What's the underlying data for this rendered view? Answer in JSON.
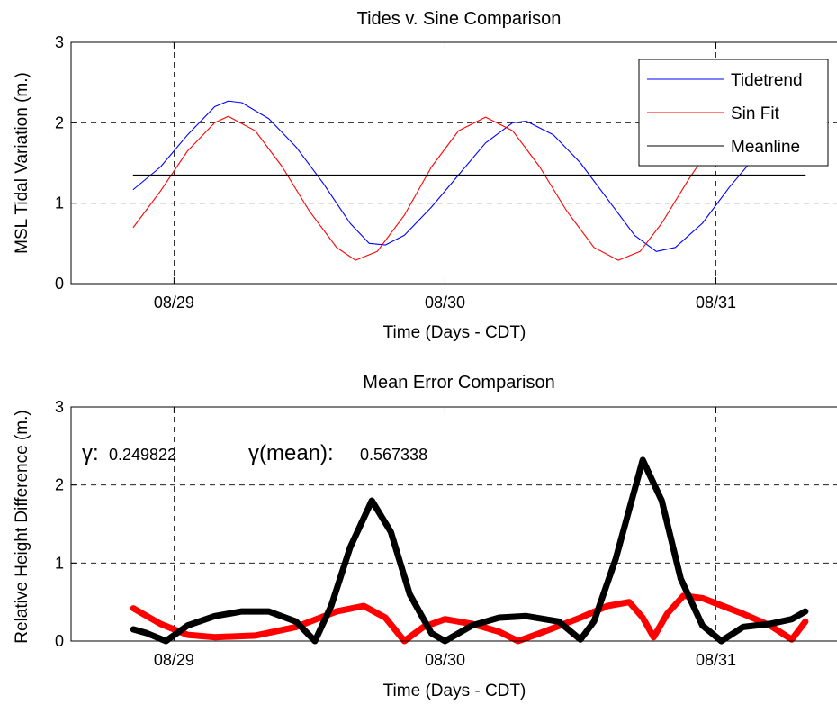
{
  "chart_data": [
    {
      "type": "line",
      "title": "Tides v. Sine Comparison",
      "xlabel": "Time (Days - CDT)",
      "ylabel": "MSL Tidal Variation (m.)",
      "xlim": [
        28.62,
        31.45
      ],
      "ylim": [
        0,
        3
      ],
      "xticks": [
        29,
        30,
        31
      ],
      "xtick_labels": [
        "08/29",
        "08/30",
        "08/31"
      ],
      "yticks": [
        0,
        1,
        2,
        3
      ],
      "ytick_labels": [
        "0",
        "1",
        "2",
        "3"
      ],
      "grid": true,
      "legend_position": "top-right",
      "x_start": 28.85,
      "x_end": 31.33,
      "series": [
        {
          "name": "Tidetrend",
          "color": "#0000ff",
          "points": [
            [
              28.85,
              1.17
            ],
            [
              28.95,
              1.45
            ],
            [
              29.05,
              1.85
            ],
            [
              29.15,
              2.2
            ],
            [
              29.2,
              2.27
            ],
            [
              29.25,
              2.25
            ],
            [
              29.35,
              2.05
            ],
            [
              29.45,
              1.7
            ],
            [
              29.55,
              1.25
            ],
            [
              29.65,
              0.75
            ],
            [
              29.72,
              0.5
            ],
            [
              29.78,
              0.48
            ],
            [
              29.85,
              0.6
            ],
            [
              29.95,
              0.95
            ],
            [
              30.05,
              1.35
            ],
            [
              30.15,
              1.75
            ],
            [
              30.25,
              2.0
            ],
            [
              30.3,
              2.02
            ],
            [
              30.4,
              1.85
            ],
            [
              30.5,
              1.5
            ],
            [
              30.6,
              1.05
            ],
            [
              30.7,
              0.6
            ],
            [
              30.78,
              0.4
            ],
            [
              30.85,
              0.45
            ],
            [
              30.95,
              0.75
            ],
            [
              31.05,
              1.2
            ],
            [
              31.15,
              1.6
            ],
            [
              31.25,
              1.95
            ],
            [
              31.33,
              2.1
            ]
          ]
        },
        {
          "name": "Sin Fit",
          "color": "#ff0000",
          "points": [
            [
              28.85,
              0.7
            ],
            [
              28.95,
              1.15
            ],
            [
              29.05,
              1.65
            ],
            [
              29.15,
              2.0
            ],
            [
              29.2,
              2.08
            ],
            [
              29.3,
              1.9
            ],
            [
              29.4,
              1.45
            ],
            [
              29.5,
              0.9
            ],
            [
              29.6,
              0.45
            ],
            [
              29.67,
              0.29
            ],
            [
              29.75,
              0.4
            ],
            [
              29.85,
              0.85
            ],
            [
              29.95,
              1.45
            ],
            [
              30.05,
              1.9
            ],
            [
              30.15,
              2.07
            ],
            [
              30.25,
              1.9
            ],
            [
              30.35,
              1.45
            ],
            [
              30.45,
              0.9
            ],
            [
              30.55,
              0.45
            ],
            [
              30.64,
              0.29
            ],
            [
              30.72,
              0.4
            ],
            [
              30.8,
              0.75
            ],
            [
              30.9,
              1.3
            ],
            [
              31.0,
              1.8
            ],
            [
              31.1,
              2.05
            ],
            [
              31.2,
              2.0
            ],
            [
              31.33,
              1.6
            ]
          ]
        },
        {
          "name": "Meanline",
          "color": "#000000",
          "points": [
            [
              28.85,
              1.35
            ],
            [
              31.33,
              1.35
            ]
          ]
        }
      ]
    },
    {
      "type": "line",
      "title": "Mean Error Comparison",
      "xlabel": "Time (Days - CDT)",
      "ylabel": "Relative Height Difference (m.)",
      "xlim": [
        28.62,
        31.45
      ],
      "ylim": [
        0,
        3
      ],
      "xticks": [
        29,
        30,
        31
      ],
      "xtick_labels": [
        "08/29",
        "08/30",
        "08/31"
      ],
      "yticks": [
        0,
        1,
        2,
        3
      ],
      "ytick_labels": [
        "0",
        "1",
        "2",
        "3"
      ],
      "grid": true,
      "annotations": [
        {
          "symbol": "γ:",
          "value": "0.249822"
        },
        {
          "symbol": "γ(mean):",
          "value": "0.567338"
        }
      ],
      "series": [
        {
          "color": "#ff0000",
          "points": [
            [
              28.85,
              0.42
            ],
            [
              28.95,
              0.22
            ],
            [
              29.05,
              0.08
            ],
            [
              29.15,
              0.05
            ],
            [
              29.3,
              0.07
            ],
            [
              29.45,
              0.18
            ],
            [
              29.6,
              0.38
            ],
            [
              29.7,
              0.45
            ],
            [
              29.78,
              0.3
            ],
            [
              29.85,
              0.0
            ],
            [
              29.92,
              0.18
            ],
            [
              30.0,
              0.28
            ],
            [
              30.1,
              0.22
            ],
            [
              30.2,
              0.12
            ],
            [
              30.27,
              0.0
            ],
            [
              30.35,
              0.1
            ],
            [
              30.5,
              0.3
            ],
            [
              30.6,
              0.45
            ],
            [
              30.68,
              0.5
            ],
            [
              30.73,
              0.3
            ],
            [
              30.77,
              0.05
            ],
            [
              30.82,
              0.35
            ],
            [
              30.88,
              0.58
            ],
            [
              30.95,
              0.55
            ],
            [
              31.1,
              0.35
            ],
            [
              31.2,
              0.2
            ],
            [
              31.28,
              0.02
            ],
            [
              31.33,
              0.25
            ]
          ]
        },
        {
          "color": "#000000",
          "points": [
            [
              28.85,
              0.15
            ],
            [
              28.9,
              0.1
            ],
            [
              28.97,
              0.0
            ],
            [
              29.05,
              0.2
            ],
            [
              29.15,
              0.32
            ],
            [
              29.25,
              0.38
            ],
            [
              29.35,
              0.38
            ],
            [
              29.45,
              0.25
            ],
            [
              29.52,
              0.0
            ],
            [
              29.58,
              0.45
            ],
            [
              29.65,
              1.2
            ],
            [
              29.73,
              1.8
            ],
            [
              29.8,
              1.4
            ],
            [
              29.87,
              0.6
            ],
            [
              29.95,
              0.1
            ],
            [
              30.0,
              0.0
            ],
            [
              30.1,
              0.2
            ],
            [
              30.2,
              0.3
            ],
            [
              30.3,
              0.32
            ],
            [
              30.42,
              0.25
            ],
            [
              30.5,
              0.02
            ],
            [
              30.55,
              0.25
            ],
            [
              30.63,
              1.05
            ],
            [
              30.73,
              2.32
            ],
            [
              30.8,
              1.8
            ],
            [
              30.87,
              0.8
            ],
            [
              30.95,
              0.2
            ],
            [
              31.02,
              0.0
            ],
            [
              31.1,
              0.18
            ],
            [
              31.2,
              0.22
            ],
            [
              31.28,
              0.28
            ],
            [
              31.33,
              0.38
            ]
          ]
        }
      ]
    }
  ]
}
